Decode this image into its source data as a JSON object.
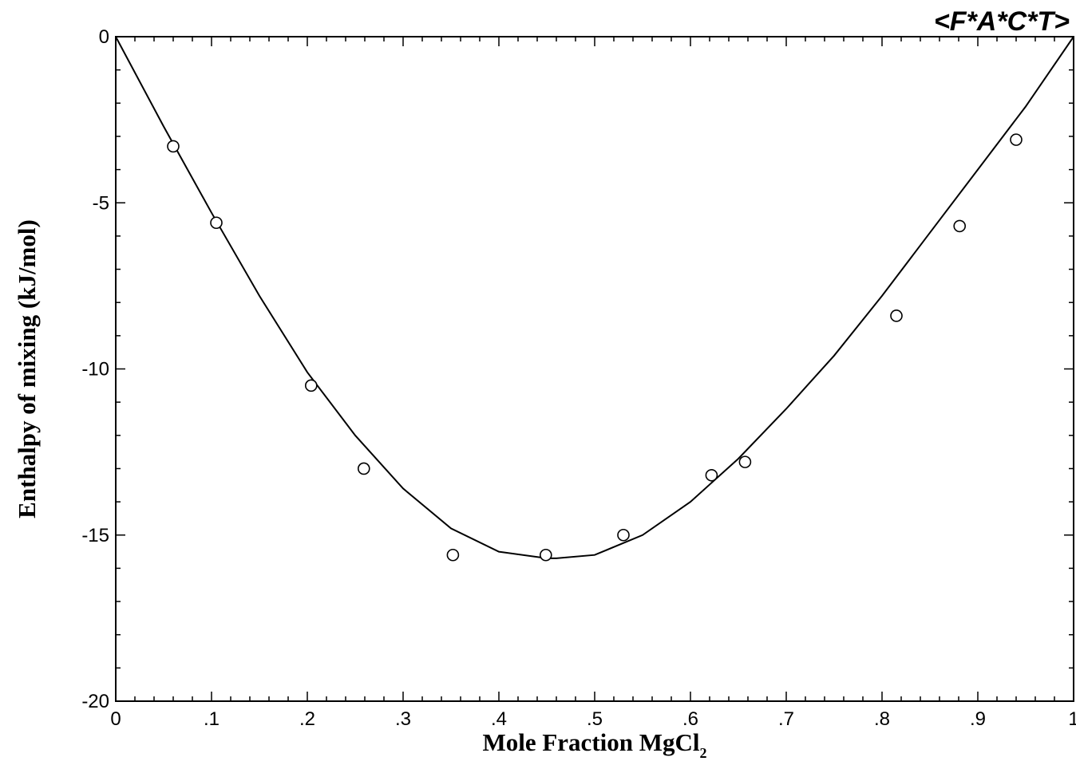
{
  "logo_text": "<F*A*C*T>",
  "chart_data": {
    "type": "scatter",
    "title": "",
    "xlabel": "Mole Fraction MgCl",
    "xlabel_subscript": "2",
    "ylabel": "Enthalpy of mixing (kJ/mol)",
    "xlim": [
      0,
      1
    ],
    "ylim": [
      -20,
      0
    ],
    "x_tick_labels": [
      {
        "value": 0,
        "label": "0"
      },
      {
        "value": 0.1,
        "label": ".1"
      },
      {
        "value": 0.2,
        "label": ".2"
      },
      {
        "value": 0.3,
        "label": ".3"
      },
      {
        "value": 0.4,
        "label": ".4"
      },
      {
        "value": 0.5,
        "label": ".5"
      },
      {
        "value": 0.6,
        "label": ".6"
      },
      {
        "value": 0.7,
        "label": ".7"
      },
      {
        "value": 0.8,
        "label": ".8"
      },
      {
        "value": 0.9,
        "label": ".9"
      },
      {
        "value": 1,
        "label": "1"
      }
    ],
    "y_tick_labels": [
      {
        "value": 0,
        "label": "0"
      },
      {
        "value": -5,
        "label": "-5"
      },
      {
        "value": -10,
        "label": "-10"
      },
      {
        "value": -15,
        "label": "-15"
      },
      {
        "value": -20,
        "label": "-20"
      }
    ],
    "grid": false,
    "series": [
      {
        "kind": "line",
        "x": [
          0,
          0.05,
          0.1,
          0.15,
          0.2,
          0.25,
          0.3,
          0.35,
          0.4,
          0.45,
          0.46,
          0.5,
          0.55,
          0.6,
          0.65,
          0.7,
          0.75,
          0.8,
          0.85,
          0.9,
          0.95,
          1.0
        ],
        "y": [
          0,
          -2.7,
          -5.3,
          -7.8,
          -10.1,
          -12.0,
          -13.6,
          -14.8,
          -15.5,
          -15.7,
          -15.7,
          -15.6,
          -15.0,
          -14.0,
          -12.7,
          -11.2,
          -9.6,
          -7.8,
          -5.9,
          -4.0,
          -2.1,
          0
        ]
      },
      {
        "kind": "scatter",
        "x": [
          0.06,
          0.105,
          0.204,
          0.259,
          0.352,
          0.449,
          0.53,
          0.622,
          0.657,
          0.815,
          0.881,
          0.94
        ],
        "y": [
          -3.3,
          -5.6,
          -10.5,
          -13.0,
          -15.6,
          -15.6,
          -15.0,
          -13.2,
          -12.8,
          -8.4,
          -5.7,
          -3.1
        ]
      }
    ]
  }
}
